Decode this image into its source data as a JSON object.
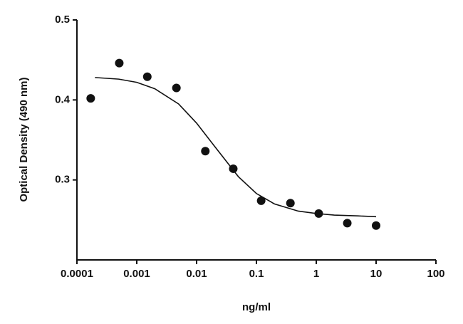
{
  "chart_data": {
    "type": "scatter",
    "xlabel": "ng/ml",
    "ylabel": "Optical Density (490 nm)",
    "xscale": "log",
    "color": "#111111",
    "x": [
      0.00017,
      0.00051,
      0.0015,
      0.0046,
      0.014,
      0.041,
      0.12,
      0.37,
      1.1,
      3.3,
      10
    ],
    "values": [
      0.402,
      0.446,
      0.429,
      0.415,
      0.336,
      0.314,
      0.274,
      0.271,
      0.258,
      0.246,
      0.243
    ],
    "fit": {
      "x": [
        0.0002,
        0.0005,
        0.001,
        0.002,
        0.005,
        0.01,
        0.02,
        0.05,
        0.1,
        0.2,
        0.5,
        1,
        2,
        5,
        10
      ],
      "values": [
        0.428,
        0.426,
        0.422,
        0.414,
        0.395,
        0.371,
        0.342,
        0.304,
        0.283,
        0.27,
        0.261,
        0.258,
        0.256,
        0.255,
        0.254
      ]
    },
    "xlim": [
      0.0001,
      100
    ],
    "xticks": [
      0.0001,
      0.001,
      0.01,
      0.1,
      1,
      10,
      100
    ],
    "ylim": [
      0.2,
      0.5
    ],
    "yticks": [
      0.3,
      0.4,
      0.5
    ]
  }
}
